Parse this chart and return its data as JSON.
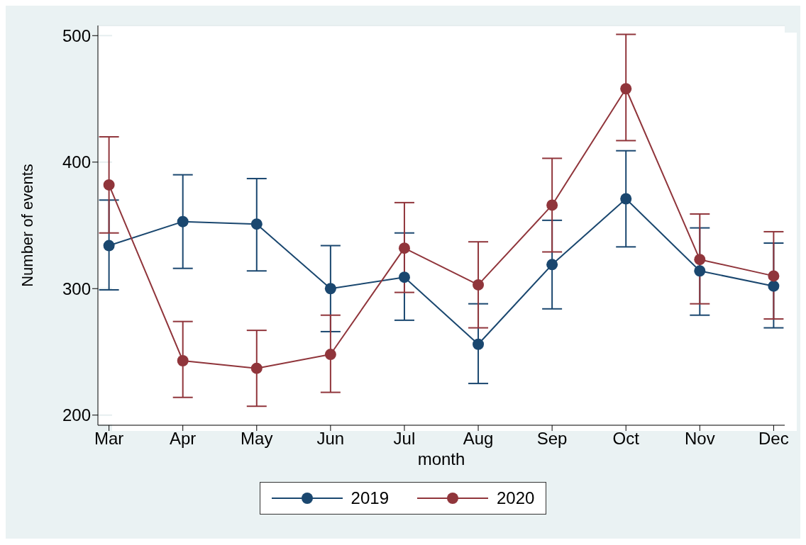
{
  "chart_data": {
    "type": "line",
    "xlabel": "month",
    "ylabel": "Number of events",
    "categories": [
      "Mar",
      "Apr",
      "May",
      "Jun",
      "Jul",
      "Aug",
      "Sep",
      "Oct",
      "Nov",
      "Dec"
    ],
    "series": [
      {
        "name": "2019",
        "color": "#1a476f",
        "values": [
          334,
          353,
          351,
          300,
          309,
          256,
          319,
          371,
          314,
          302
        ],
        "errors": [
          [
            299,
            370
          ],
          [
            316,
            390
          ],
          [
            314,
            387
          ],
          [
            266,
            334
          ],
          [
            275,
            344
          ],
          [
            225,
            288
          ],
          [
            284,
            354
          ],
          [
            333,
            409
          ],
          [
            279,
            348
          ],
          [
            269,
            336
          ]
        ]
      },
      {
        "name": "2020",
        "color": "#90353b",
        "values": [
          382,
          243,
          237,
          248,
          332,
          303,
          366,
          458,
          323,
          310
        ],
        "errors": [
          [
            344,
            420
          ],
          [
            214,
            274
          ],
          [
            207,
            267
          ],
          [
            218,
            279
          ],
          [
            297,
            368
          ],
          [
            269,
            337
          ],
          [
            329,
            403
          ],
          [
            417,
            501
          ],
          [
            288,
            359
          ],
          [
            276,
            345
          ]
        ]
      }
    ],
    "ylim": [
      192,
      508
    ],
    "yticks": [
      200,
      300,
      400,
      500
    ],
    "grid": "y",
    "legend": "bottom",
    "marker": "circle",
    "line_style": "solid"
  }
}
